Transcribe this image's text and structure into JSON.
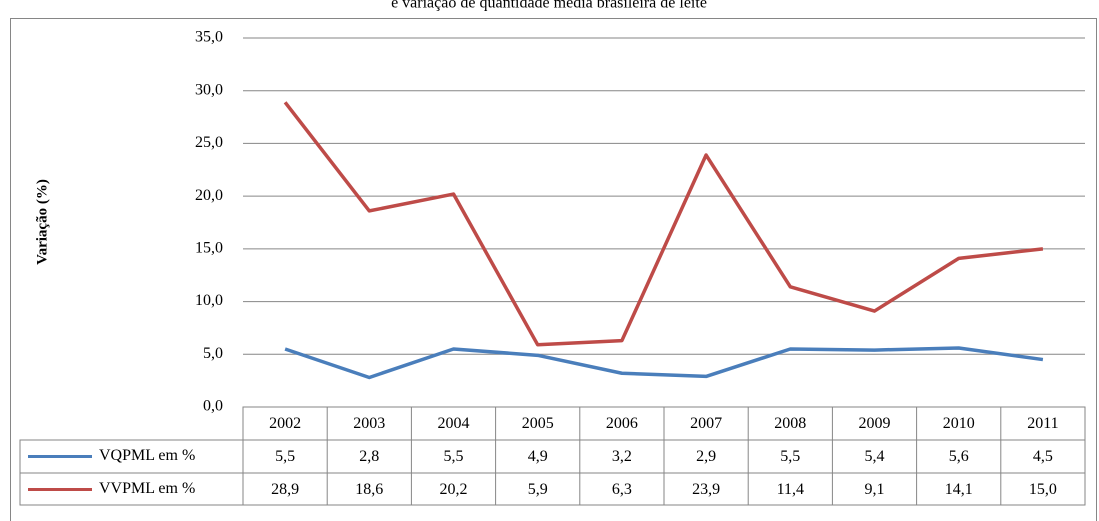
{
  "chart_data": {
    "type": "line",
    "title": "e variação de quantidade média brasileira de leite",
    "y_label": "Variação (%)",
    "categories": [
      "2002",
      "2003",
      "2004",
      "2005",
      "2006",
      "2007",
      "2008",
      "2009",
      "2010",
      "2011"
    ],
    "series": [
      {
        "name": "VQPML em %",
        "color": "#4a7ebb",
        "values": [
          5.5,
          2.8,
          5.5,
          4.9,
          3.2,
          2.9,
          5.5,
          5.4,
          5.6,
          4.5
        ],
        "value_labels": [
          "5,5",
          "2,8",
          "5,5",
          "4,9",
          "3,2",
          "2,9",
          "5,5",
          "5,4",
          "5,6",
          "4,5"
        ]
      },
      {
        "name": "VVPML em %",
        "color": "#be4b48",
        "values": [
          28.9,
          18.6,
          20.2,
          5.9,
          6.3,
          23.9,
          11.4,
          9.1,
          14.1,
          15.0
        ],
        "value_labels": [
          "28,9",
          "18,6",
          "20,2",
          "5,9",
          "6,3",
          "23,9",
          "11,4",
          "9,1",
          "14,1",
          "15,0"
        ]
      }
    ],
    "ylim": [
      0,
      35
    ],
    "yticks": [
      {
        "value": 0,
        "label": "0,0"
      },
      {
        "value": 5,
        "label": "5,0"
      },
      {
        "value": 10,
        "label": "10,0"
      },
      {
        "value": 15,
        "label": "15,0"
      },
      {
        "value": 20,
        "label": "20,0"
      },
      {
        "value": 25,
        "label": "25,0"
      },
      {
        "value": 30,
        "label": "30,0"
      },
      {
        "value": 35,
        "label": "35,0"
      }
    ],
    "grid": true
  }
}
